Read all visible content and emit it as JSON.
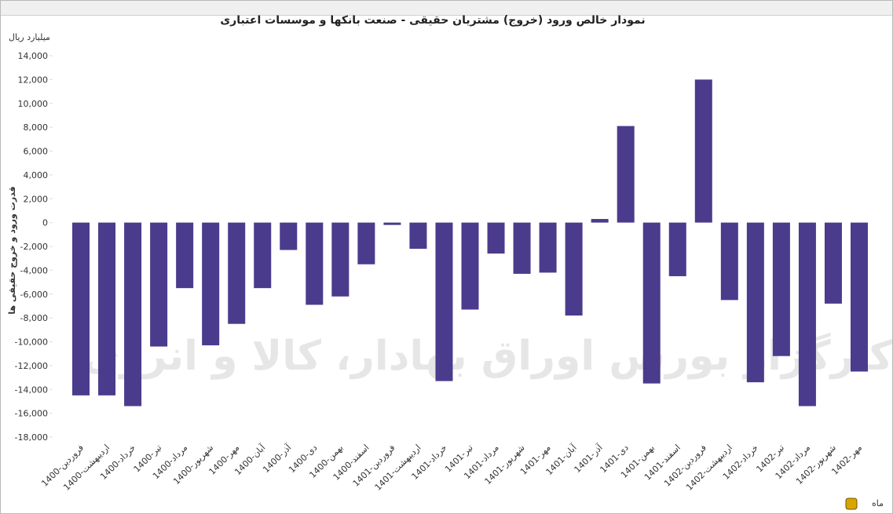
{
  "chart_data": {
    "type": "bar",
    "title": "نمودار خالص ورود (خروج) مشتریان حقیقی - صنعت بانکها و موسسات اعتباری",
    "unit_label": "میلیارد ریال",
    "y_label": "قدرت ورود و خروج حقیقی ها",
    "x_label": "ماه",
    "watermark": "کارگزار بورس اوراق بهادار، کالا و انرژی",
    "color": "#4b3b8c",
    "categories": [
      "1400-فروردین",
      "1400-اردیبهشت",
      "1400-خرداد",
      "1400-تیر",
      "1400-مرداد",
      "1400-شهریور",
      "1400-مهر",
      "1400-آبان",
      "1400-آذر",
      "1400-دی",
      "1400-بهمن",
      "1400-اسفند",
      "1401-فروردین",
      "1401-اردیبهشت",
      "1401-خرداد",
      "1401-تیر",
      "1401-مرداد",
      "1401-شهریور",
      "1401-مهر",
      "1401-آبان",
      "1401-آذر",
      "1401-دی",
      "1401-بهمن",
      "1401-اسفند",
      "1402-فروردین",
      "1402-اردیبهشت",
      "1402-خرداد",
      "1402-تیر",
      "1402-مرداد",
      "1402-شهریور",
      "1402-مهر"
    ],
    "values": [
      -14500,
      -14500,
      -15400,
      -10400,
      -5500,
      -10300,
      -8500,
      -5500,
      -2300,
      -6900,
      -6200,
      -3500,
      -200,
      -2200,
      -13300,
      -7300,
      -2600,
      -4300,
      -4200,
      -7800,
      300,
      8100,
      -13500,
      -4500,
      12000,
      -6500,
      -13400,
      -11200,
      -15400,
      -6800,
      -12500
    ],
    "ylim": [
      -18000,
      14000
    ],
    "yticks": [
      {
        "value": -18000,
        "label": "-18,000"
      },
      {
        "value": -16000,
        "label": "-16,000"
      },
      {
        "value": -14000,
        "label": "-14,000"
      },
      {
        "value": -12000,
        "label": "-12,000"
      },
      {
        "value": -10000,
        "label": "-10,000"
      },
      {
        "value": -8000,
        "label": "-8,000"
      },
      {
        "value": -6000,
        "label": "-6,000"
      },
      {
        "value": -4000,
        "label": "-4,000"
      },
      {
        "value": -2000,
        "label": "-2,000"
      },
      0,
      {
        "value": 2000,
        "label": "2,000"
      },
      {
        "value": 4000,
        "label": "4,000"
      },
      {
        "value": 6000,
        "label": "6,000"
      },
      {
        "value": 8000,
        "label": "8,000"
      },
      {
        "value": 10000,
        "label": "10,000"
      },
      {
        "value": 12000,
        "label": "12,000"
      },
      {
        "value": 14000,
        "label": "14,000"
      }
    ]
  }
}
